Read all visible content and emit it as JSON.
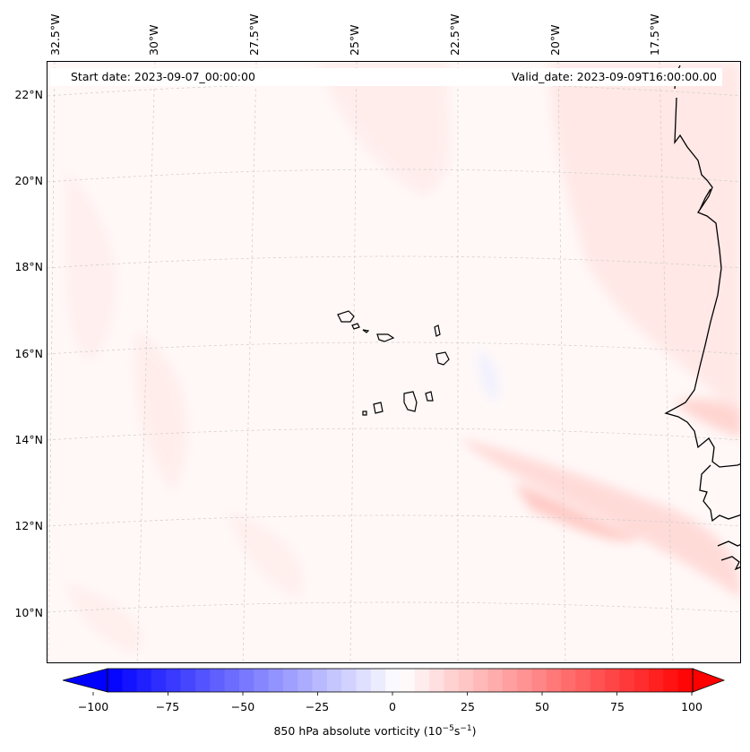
{
  "map": {
    "start_date": "Start date: 2023-09-07_00:00:00",
    "valid_date": "Valid_date: 2023-09-09T16:00:00.00",
    "lon_labels": [
      "32.5°W",
      "30°W",
      "27.5°W",
      "25°W",
      "22.5°W",
      "20°W",
      "17.5°W"
    ],
    "lat_labels": [
      "22°N",
      "20°N",
      "18°N",
      "16°N",
      "14°N",
      "12°N",
      "10°N"
    ],
    "colors": {
      "land_outline": "#000000",
      "grid": "#cccccc",
      "positive": "#ff0000",
      "negative": "#0000ff",
      "background": "#fff8f7"
    }
  },
  "colorbar": {
    "ticks": [
      "−100",
      "−75",
      "−50",
      "−25",
      "0",
      "25",
      "50",
      "75",
      "100"
    ],
    "label": "850 hPa absolute vorticity (10",
    "label_exp1": "−5",
    "label_mid": "s",
    "label_exp2": "−1",
    "label_end": ")",
    "range": [
      -100,
      100
    ]
  }
}
